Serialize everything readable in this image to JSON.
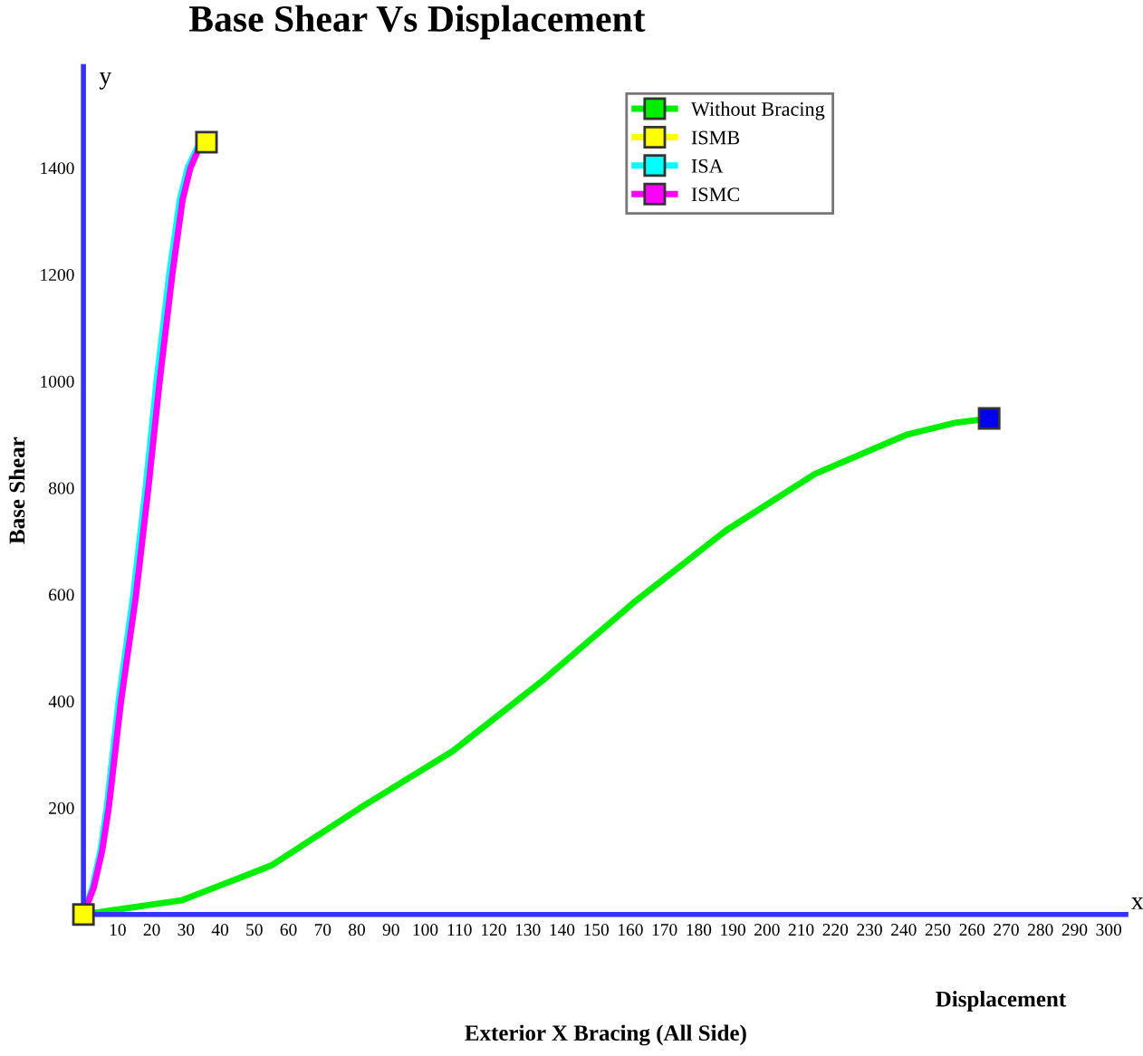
{
  "chart_data": {
    "type": "line",
    "title": "Base Shear Vs Displacement",
    "xlabel": "Displacement",
    "ylabel": "Base Shear",
    "annotations": [
      "Exterior X Bracing (All Side)",
      "x",
      "y"
    ],
    "xlim": [
      0,
      305
    ],
    "ylim": [
      0,
      1590
    ],
    "xticks": [
      10,
      20,
      30,
      40,
      50,
      60,
      70,
      80,
      90,
      100,
      110,
      120,
      130,
      140,
      150,
      160,
      170,
      180,
      190,
      200,
      210,
      220,
      230,
      240,
      250,
      260,
      270,
      280,
      290,
      300
    ],
    "yticks": [
      200,
      400,
      600,
      800,
      1000,
      1200,
      1400
    ],
    "grid": false,
    "legend": "top",
    "marker": "square",
    "line_style": "solid",
    "series": [
      {
        "name": "Without Bracing",
        "color": "#00ee00",
        "marker": "none",
        "x": [
          0,
          29,
          55,
          82,
          108,
          135,
          161,
          188,
          214,
          241,
          255,
          265
        ],
        "values": [
          0,
          27,
          92,
          204,
          306,
          442,
          585,
          720,
          826,
          900,
          922,
          930
        ]
      },
      {
        "name": "ISMB",
        "color": "#ffff00",
        "marker": "none"
      },
      {
        "name": "ISA",
        "color": "#00ffff",
        "marker": "none",
        "x": [
          0,
          2.6,
          5,
          6.8,
          10.3,
          14.6,
          18.2,
          21.4,
          25.1,
          28.2,
          30.5,
          33.5,
          36
        ],
        "values": [
          0,
          50,
          120,
          200,
          400,
          600,
          800,
          1000,
          1200,
          1340,
          1400,
          1440,
          1448
        ]
      },
      {
        "name": "ISMC",
        "color": "#ff00ff",
        "marker": "none",
        "x": [
          0,
          3,
          5.5,
          7.4,
          11,
          15.4,
          19,
          22.3,
          26,
          29,
          31.3,
          34,
          36
        ],
        "values": [
          0,
          50,
          120,
          200,
          400,
          600,
          800,
          1000,
          1200,
          1340,
          1400,
          1440,
          1448
        ]
      },
      {
        "type": "scatter",
        "color": "#0000ee",
        "x": [
          265
        ],
        "values": [
          930
        ]
      },
      {
        "type": "scatter",
        "color": "#ffff00",
        "x": [
          0,
          36
        ],
        "values": [
          0,
          1448
        ]
      }
    ]
  }
}
